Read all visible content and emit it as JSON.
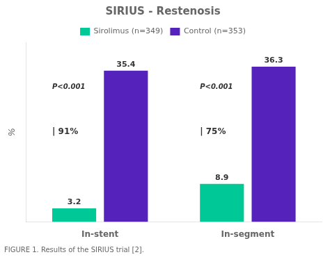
{
  "chart_data": {
    "type": "bar",
    "title": "SIRIUS - Restenosis",
    "caption": "FIGURE 1. Results of the SIRIUS trial [2].",
    "ylabel": "%",
    "categories": [
      "In-stent",
      "In-segment"
    ],
    "series": [
      {
        "name": "Sirolimus (n=349)",
        "color": "#00C896",
        "values": [
          3.2,
          8.9
        ]
      },
      {
        "name": "Control (n=353)",
        "color": "#5522BB",
        "values": [
          35.4,
          36.3
        ]
      }
    ],
    "ylim": [
      0,
      42
    ],
    "grid": false,
    "legend": "top",
    "data_labels": true,
    "tick_labels": "x",
    "annotations": [
      {
        "text": "P<0.001",
        "category": "In-stent"
      },
      {
        "text": "| 91%",
        "category": "In-stent"
      },
      {
        "text": "P<0.001",
        "category": "In-segment"
      },
      {
        "text": "| 75%",
        "category": "In-segment"
      }
    ]
  }
}
